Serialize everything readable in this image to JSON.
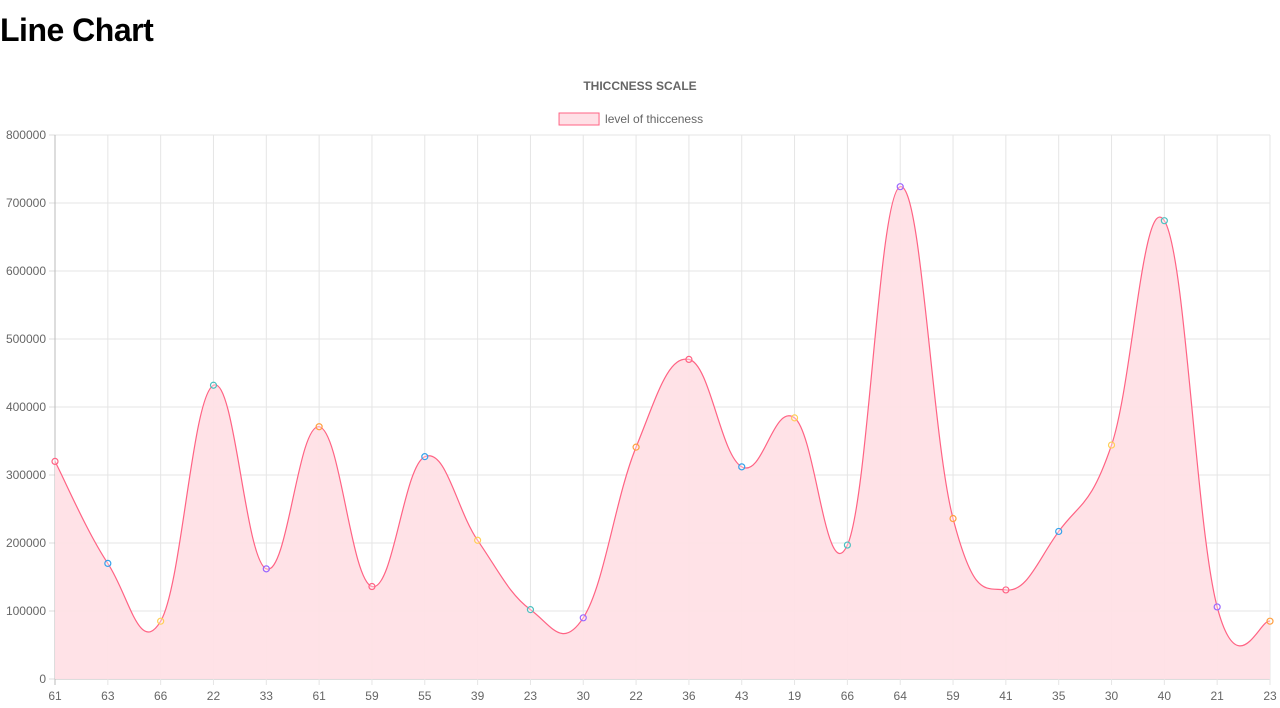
{
  "page": {
    "heading": "Line Chart"
  },
  "chart_data": {
    "type": "area",
    "title": "THICCNESS SCALE",
    "legend_position": "top",
    "grid": true,
    "categories": [
      "61",
      "63",
      "66",
      "22",
      "33",
      "61",
      "59",
      "55",
      "39",
      "23",
      "30",
      "22",
      "36",
      "43",
      "19",
      "66",
      "64",
      "59",
      "41",
      "35",
      "30",
      "40",
      "21",
      "23"
    ],
    "series": [
      {
        "name": "level of thicceness",
        "values": [
          320000,
          170000,
          85000,
          432000,
          162000,
          371000,
          136000,
          327000,
          204000,
          102000,
          90000,
          341000,
          470000,
          312000,
          384000,
          197000,
          724000,
          236000,
          131000,
          217000,
          344000,
          674000,
          106000,
          85000
        ],
        "line_color": "#ff6384",
        "fill_color": "#ffe0e6"
      }
    ],
    "point_colors": [
      "#ff6384",
      "#36a2eb",
      "#ffce56",
      "#4bc0c0",
      "#9966ff",
      "#ff9f40"
    ],
    "ylim": [
      0,
      800000
    ],
    "yticks": [
      "0",
      "100000",
      "200000",
      "300000",
      "400000",
      "500000",
      "600000",
      "700000",
      "800000"
    ]
  }
}
